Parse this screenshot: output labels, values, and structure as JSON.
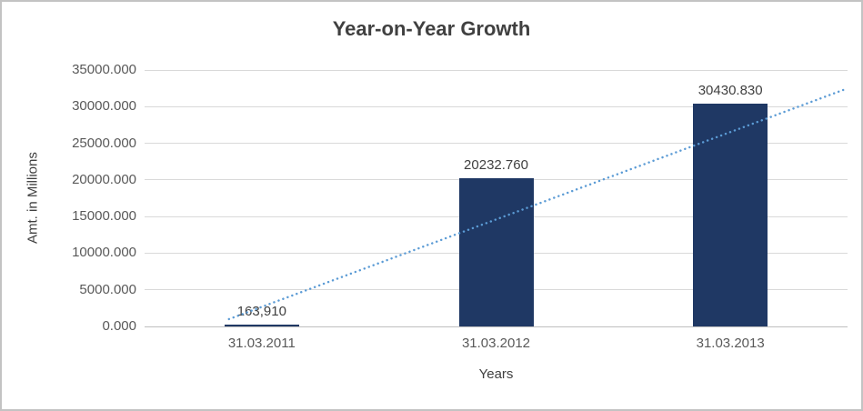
{
  "chart_data": {
    "type": "bar",
    "title": "Year-on-Year Growth",
    "xlabel": "Years",
    "ylabel": "Amt. in Millions",
    "categories": [
      "31.03.2011",
      "31.03.2012",
      "31.03.2013"
    ],
    "values": [
      163.91,
      20232.76,
      30430.83
    ],
    "data_labels": [
      "163,910",
      "20232.760",
      "30430.830"
    ],
    "ylim": [
      0,
      35000
    ],
    "ytick_step": 5000,
    "ytick_labels": [
      "0.000",
      "5000.000",
      "10000.000",
      "15000.000",
      "20000.000",
      "25000.000",
      "30000.000",
      "35000.000"
    ],
    "grid": true,
    "legend": "none",
    "bar_color": "#1F3864",
    "grid_color": "#D9D9D9",
    "axis_color": "#BFBFBF",
    "title_color": "#404040",
    "tick_color": "#595959",
    "trendline": {
      "type": "linear",
      "style": "dotted",
      "color": "#5B9BD5",
      "x_category_coords": [
        -0.14,
        2.5
      ],
      "y_values": [
        1000,
        32500
      ]
    }
  }
}
